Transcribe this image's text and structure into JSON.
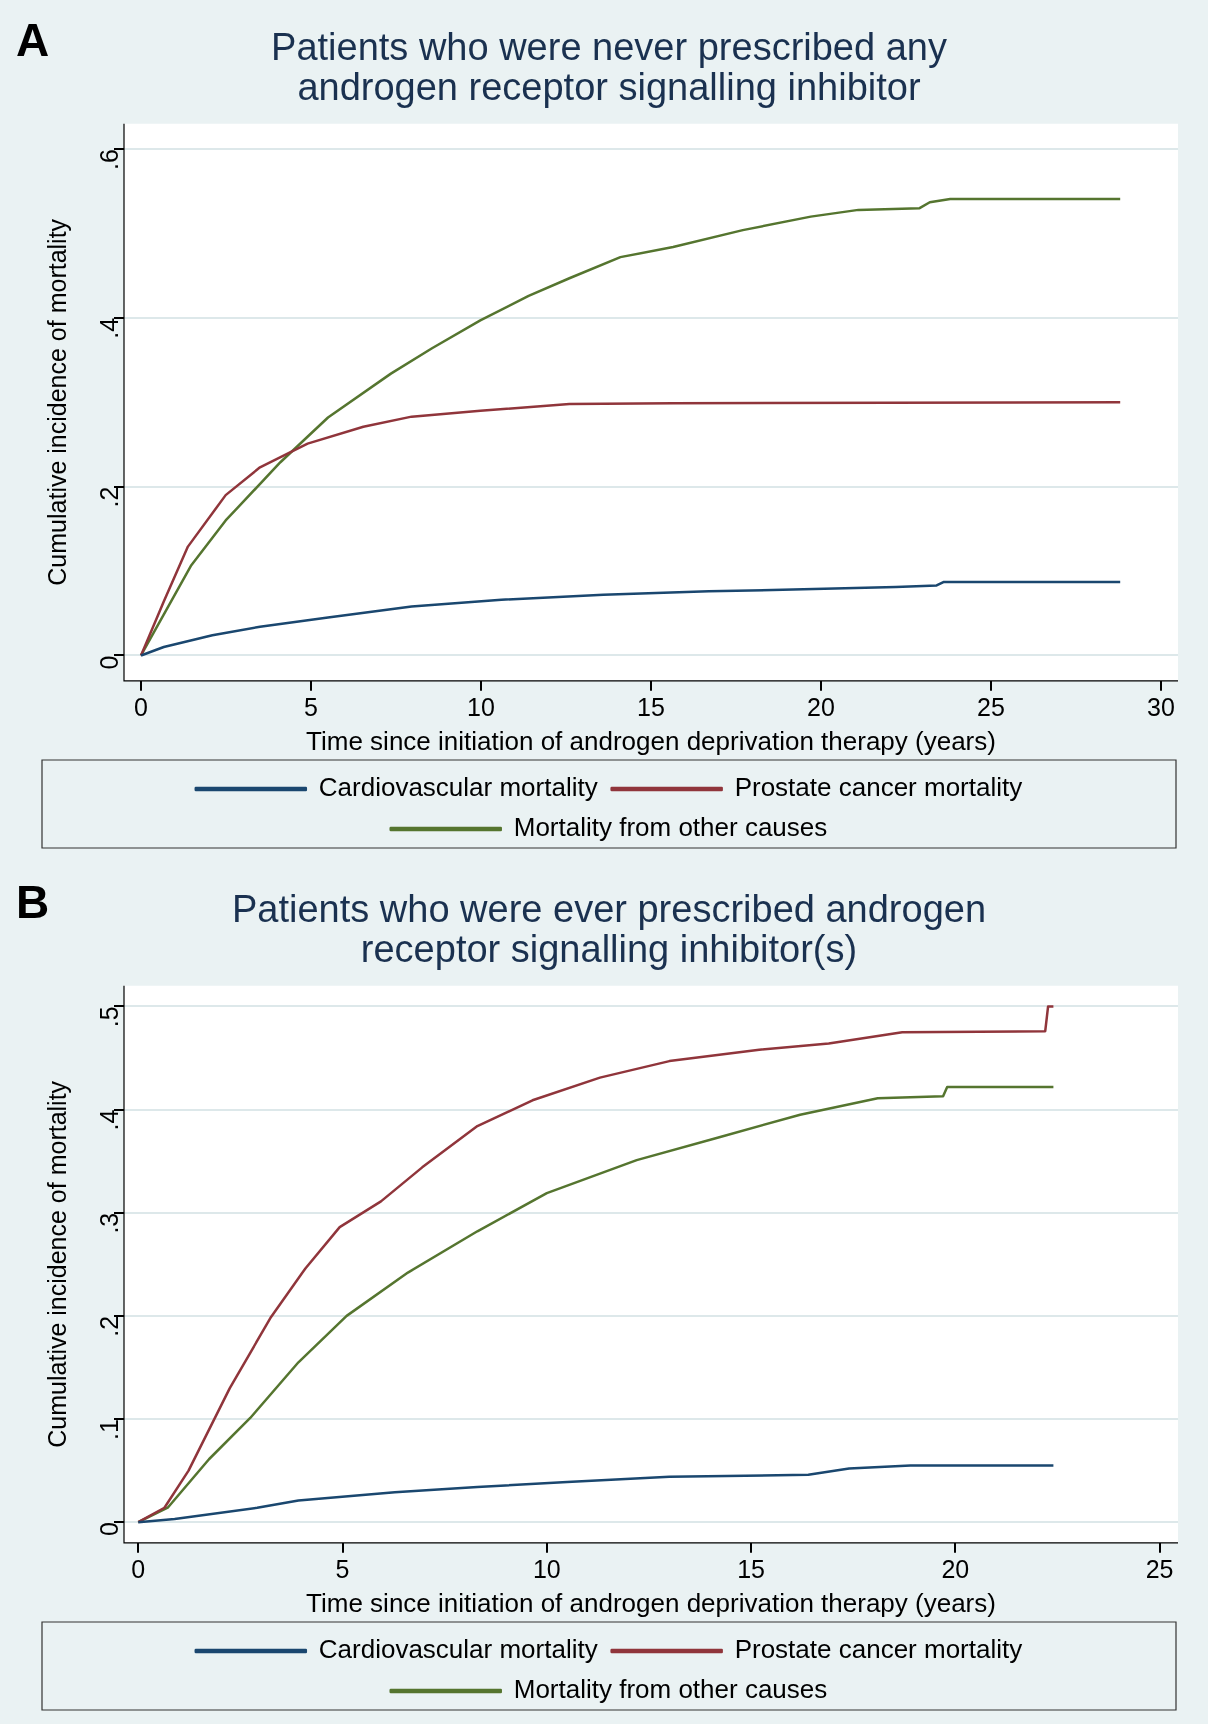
{
  "chart_data": [
    {
      "type": "line",
      "title": "Patients who were never prescribed any androgen receptor signalling inhibitor",
      "xlabel": "Time since initiation of androgen deprivation therapy (years)",
      "ylabel": "Cumulative incidence of mortality",
      "annotations": [
        "A"
      ],
      "xlim": [
        -0.5,
        30.5
      ],
      "xticks": [
        0,
        5,
        10,
        15,
        20,
        25,
        30
      ],
      "ylim": [
        -0.03,
        0.63
      ],
      "yticks": [
        {
          "value": 0,
          "label": "0"
        },
        {
          "value": 0.2,
          "label": ".2"
        },
        {
          "value": 0.4,
          "label": ".4"
        },
        {
          "value": 0.6,
          "label": ".6"
        }
      ],
      "grid": "y",
      "legend": "bottom",
      "series": [
        {
          "name": "Cardiovascular mortality",
          "color": "#1a476f",
          "x": [
            0,
            0.67,
            2.1,
            3.5,
            5.5,
            7.96,
            10.6,
            13.6,
            16.7,
            20.1,
            22.2,
            23.4,
            23.6,
            28.8
          ],
          "values": [
            0,
            0.01,
            0.024,
            0.034,
            0.045,
            0.058,
            0.066,
            0.072,
            0.076,
            0.079,
            0.081,
            0.083,
            0.087,
            0.087
          ]
        },
        {
          "name": "Prostate cancer mortality",
          "color": "#90353b",
          "x": [
            0,
            0.67,
            1.38,
            2.49,
            3.5,
            4.9,
            6.54,
            7.96,
            9.98,
            12.6,
            15.65,
            28.8
          ],
          "values": [
            0,
            0.064,
            0.129,
            0.19,
            0.223,
            0.251,
            0.271,
            0.283,
            0.29,
            0.298,
            0.299,
            0.3
          ]
        },
        {
          "name": "Mortality from other causes",
          "color": "#55752f",
          "x": [
            0,
            1.48,
            2.49,
            4.1,
            5.5,
            7.35,
            8.56,
            9.98,
            11.4,
            12.6,
            14.1,
            15.65,
            17.7,
            19.7,
            21.1,
            22.9,
            23.2,
            23.8,
            28.8
          ],
          "values": [
            0,
            0.107,
            0.16,
            0.229,
            0.282,
            0.334,
            0.364,
            0.397,
            0.426,
            0.447,
            0.472,
            0.484,
            0.504,
            0.52,
            0.528,
            0.53,
            0.537,
            0.541,
            0.541
          ]
        }
      ]
    },
    {
      "type": "line",
      "title": "Patients who were ever prescribed androgen receptor signalling inhibitor(s)",
      "xlabel": "Time since initiation of androgen deprivation therapy (years)",
      "ylabel": "Cumulative incidence of mortality",
      "annotations": [
        "B"
      ],
      "xlim": [
        -0.35,
        25.45
      ],
      "xticks": [
        0,
        5,
        10,
        15,
        20,
        25
      ],
      "ylim": [
        -0.02,
        0.52
      ],
      "yticks": [
        {
          "value": 0,
          "label": "0"
        },
        {
          "value": 0.1,
          "label": ".1"
        },
        {
          "value": 0.2,
          "label": ".2"
        },
        {
          "value": 0.3,
          "label": ".3"
        },
        {
          "value": 0.4,
          "label": ".4"
        },
        {
          "value": 0.5,
          "label": ".5"
        }
      ],
      "grid": "y",
      "legend": "bottom",
      "series": [
        {
          "name": "Cardiovascular mortality",
          "color": "#1a476f",
          "x": [
            0,
            0.89,
            2.91,
            3.92,
            6.28,
            8.3,
            10.5,
            13.0,
            16.4,
            17.4,
            18.9,
            22.4
          ],
          "values": [
            0,
            0.003,
            0.014,
            0.021,
            0.029,
            0.034,
            0.039,
            0.044,
            0.046,
            0.052,
            0.055,
            0.055
          ]
        },
        {
          "name": "Prostate cancer mortality",
          "color": "#90353b",
          "x": [
            0,
            0.64,
            1.23,
            2.24,
            3.25,
            4.09,
            4.93,
            5.94,
            6.95,
            8.3,
            9.65,
            11.3,
            13.0,
            15.2,
            16.9,
            18.7,
            22.2,
            22.27,
            22.4
          ],
          "values": [
            0,
            0.014,
            0.05,
            0.13,
            0.199,
            0.246,
            0.286,
            0.311,
            0.344,
            0.384,
            0.409,
            0.431,
            0.447,
            0.458,
            0.464,
            0.475,
            0.476,
            0.5,
            0.5
          ]
        },
        {
          "name": "Mortality from other causes",
          "color": "#55752f",
          "x": [
            0,
            0.72,
            1.73,
            2.74,
            3.92,
            5.1,
            6.6,
            8.3,
            10.0,
            12.2,
            14.2,
            16.2,
            18.1,
            19.7,
            19.8,
            22.4
          ],
          "values": [
            0,
            0.014,
            0.061,
            0.101,
            0.155,
            0.2,
            0.242,
            0.282,
            0.319,
            0.351,
            0.373,
            0.395,
            0.411,
            0.413,
            0.422,
            0.422
          ]
        }
      ]
    }
  ]
}
